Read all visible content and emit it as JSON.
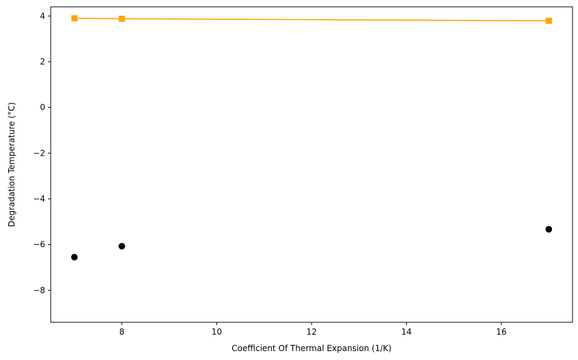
{
  "chart_data": {
    "type": "scatter",
    "title": "",
    "xlabel": "Coefficient Of Thermal Expansion (1/K)",
    "ylabel": "Degradation Temperature (°C)",
    "xlim": [
      6.5,
      17.5
    ],
    "ylim": [
      -9.4,
      4.4
    ],
    "xticks": [
      8,
      10,
      12,
      14,
      16
    ],
    "yticks": [
      4,
      2,
      0,
      -2,
      -4,
      -6,
      -8
    ],
    "x_tick_labels": [
      "8",
      "10",
      "12",
      "14",
      "16"
    ],
    "y_tick_labels": [
      "4",
      "2",
      "0",
      "−2",
      "−4",
      "−6",
      "−8"
    ],
    "grid": false,
    "series": [
      {
        "kind": "scatter",
        "marker": "circle",
        "color": "#000000",
        "points": [
          {
            "x": 7,
            "y": -6.55
          },
          {
            "x": 8,
            "y": -6.07
          },
          {
            "x": 17,
            "y": -5.33
          }
        ]
      },
      {
        "kind": "line",
        "marker": "square",
        "color": "#FFA500",
        "points": [
          {
            "x": 7,
            "y": 3.9
          },
          {
            "x": 8,
            "y": 3.88
          },
          {
            "x": 17,
            "y": 3.79
          }
        ]
      }
    ]
  }
}
